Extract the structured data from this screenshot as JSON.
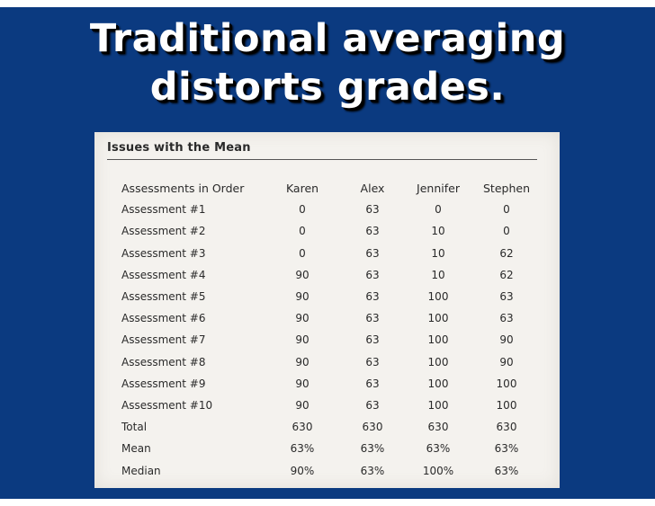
{
  "slide": {
    "title_line1": "Traditional averaging",
    "title_line2": "distorts grades."
  },
  "table": {
    "heading": "Issues with the Mean",
    "columns": [
      "Assessments in Order",
      "Karen",
      "Alex",
      "Jennifer",
      "Stephen"
    ],
    "rows": [
      [
        "Assessment #1",
        "0",
        "63",
        "0",
        "0"
      ],
      [
        "Assessment #2",
        "0",
        "63",
        "10",
        "0"
      ],
      [
        "Assessment #3",
        "0",
        "63",
        "10",
        "62"
      ],
      [
        "Assessment #4",
        "90",
        "63",
        "10",
        "62"
      ],
      [
        "Assessment #5",
        "90",
        "63",
        "100",
        "63"
      ],
      [
        "Assessment #6",
        "90",
        "63",
        "100",
        "63"
      ],
      [
        "Assessment #7",
        "90",
        "63",
        "100",
        "90"
      ],
      [
        "Assessment #8",
        "90",
        "63",
        "100",
        "90"
      ],
      [
        "Assessment #9",
        "90",
        "63",
        "100",
        "100"
      ],
      [
        "Assessment #10",
        "90",
        "63",
        "100",
        "100"
      ],
      [
        "Total",
        "630",
        "630",
        "630",
        "630"
      ],
      [
        "Mean",
        "63%",
        "63%",
        "63%",
        "63%"
      ],
      [
        "Median",
        "90%",
        "63%",
        "100%",
        "63%"
      ]
    ]
  },
  "colors": {
    "background": "#0b3a80",
    "title_text": "#ffffff",
    "paper": "#f4f2ee"
  }
}
